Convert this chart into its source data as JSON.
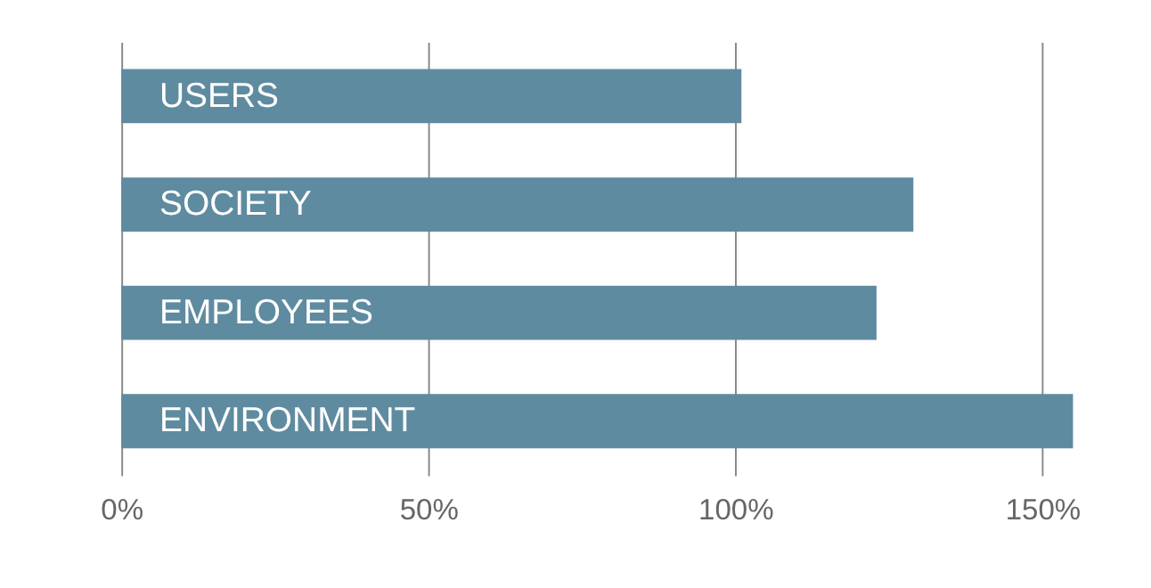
{
  "chart_data": {
    "type": "bar",
    "orientation": "horizontal",
    "categories": [
      "USERS",
      "SOCIETY",
      "EMPLOYEES",
      "ENVIRONMENT"
    ],
    "values": [
      101,
      129,
      123,
      155
    ],
    "color": "#5f8ba0",
    "xlim": [
      0,
      155
    ],
    "xticks": [
      {
        "value": 0,
        "label": "0%"
      },
      {
        "value": 50,
        "label": "50%"
      },
      {
        "value": 100,
        "label": "100%"
      },
      {
        "value": 150,
        "label": "150%"
      }
    ],
    "grid": "x",
    "tick_labels": "x"
  }
}
